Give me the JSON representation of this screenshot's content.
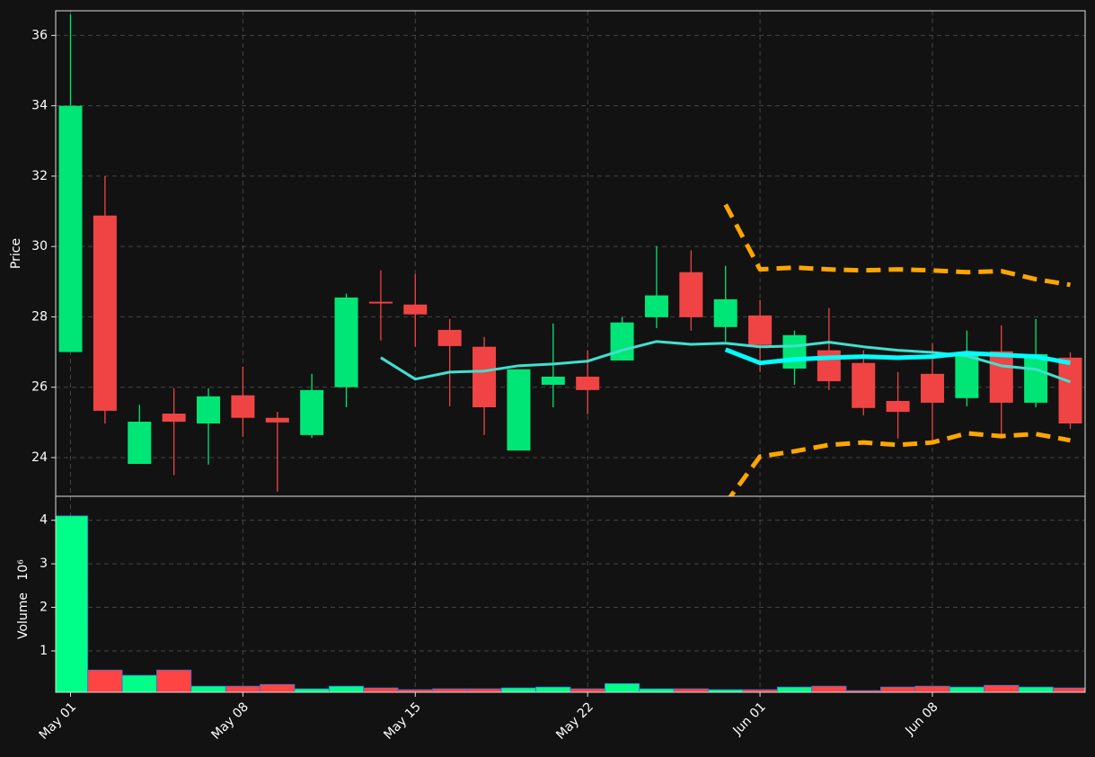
{
  "chart_data": [
    {
      "type": "candlestick",
      "ylabel": "Price",
      "open": [
        27.0,
        30.88,
        23.82,
        25.25,
        24.97,
        25.77,
        25.13,
        24.64,
        26.0,
        28.43,
        28.35,
        27.63,
        27.15,
        24.2,
        26.07,
        26.3,
        26.76,
        27.99,
        29.27,
        27.71,
        28.04,
        26.53,
        27.05,
        26.69,
        25.61,
        26.38,
        25.69,
        27.02,
        25.56,
        26.84
      ],
      "high": [
        36.6,
        32.0,
        25.5,
        25.97,
        25.97,
        26.58,
        25.3,
        26.38,
        28.66,
        29.32,
        29.22,
        27.94,
        27.43,
        26.51,
        27.81,
        27.05,
        27.99,
        30.01,
        29.89,
        29.45,
        28.48,
        27.61,
        28.25,
        27.05,
        26.43,
        27.25,
        27.61,
        27.76,
        27.94,
        26.99
      ],
      "low": [
        27.0,
        24.97,
        23.82,
        23.5,
        23.8,
        24.59,
        23.03,
        24.56,
        25.43,
        27.33,
        27.15,
        25.46,
        24.64,
        24.2,
        25.43,
        25.23,
        26.76,
        27.68,
        27.61,
        27.3,
        26.43,
        26.07,
        25.92,
        25.2,
        24.54,
        24.49,
        25.46,
        24.54,
        25.43,
        24.82
      ],
      "close": [
        34.0,
        25.33,
        25.02,
        25.02,
        25.74,
        25.13,
        25.0,
        25.92,
        28.55,
        28.38,
        28.07,
        27.17,
        25.43,
        26.51,
        26.3,
        25.92,
        27.84,
        28.61,
        27.99,
        28.5,
        27.2,
        27.48,
        26.17,
        25.41,
        25.3,
        25.56,
        26.99,
        25.56,
        26.94,
        24.97
      ],
      "up_color": "#00e676",
      "down_color": "#f04444",
      "overlays": [
        {
          "color": "#40e0d0",
          "width": 3,
          "dashed": false,
          "values": [
            null,
            null,
            null,
            null,
            null,
            null,
            null,
            null,
            null,
            26.84,
            26.23,
            26.43,
            26.46,
            26.61,
            26.66,
            26.74,
            27.05,
            27.3,
            27.22,
            27.25,
            27.15,
            27.17,
            27.28,
            27.15,
            27.05,
            26.99,
            26.89,
            26.61,
            26.51,
            26.15
          ]
        },
        {
          "color": "#00ffff",
          "width": 5,
          "dashed": false,
          "values": [
            null,
            null,
            null,
            null,
            null,
            null,
            null,
            null,
            null,
            null,
            null,
            null,
            null,
            null,
            null,
            null,
            null,
            null,
            null,
            27.07,
            26.69,
            26.79,
            26.84,
            26.87,
            26.84,
            26.87,
            26.97,
            26.92,
            26.87,
            26.69
          ]
        },
        {
          "color": "#ffa500",
          "width": 5,
          "dashed": true,
          "values": [
            null,
            null,
            null,
            null,
            null,
            null,
            null,
            null,
            null,
            null,
            null,
            null,
            null,
            null,
            null,
            null,
            null,
            null,
            null,
            31.19,
            29.35,
            29.4,
            29.35,
            29.32,
            29.35,
            29.32,
            29.27,
            29.3,
            29.07,
            28.91
          ]
        },
        {
          "color": "#ffa500",
          "width": 5,
          "dashed": true,
          "values": [
            null,
            null,
            null,
            null,
            null,
            null,
            null,
            null,
            null,
            null,
            null,
            null,
            null,
            null,
            null,
            null,
            null,
            null,
            null,
            22.7,
            24.03,
            24.18,
            24.36,
            24.43,
            24.36,
            24.43,
            24.69,
            24.61,
            24.67,
            24.49
          ]
        }
      ],
      "ylim": [
        22.9,
        36.7
      ],
      "yticks": [
        24,
        26,
        28,
        30,
        32,
        34,
        36
      ],
      "grid": true
    },
    {
      "type": "bar",
      "ylabel": "Volume",
      "exponent_label": "10⁶",
      "categories": [
        "May 01",
        null,
        null,
        null,
        null,
        "May 08",
        null,
        null,
        null,
        null,
        "May 15",
        null,
        null,
        null,
        null,
        "May 22",
        null,
        null,
        null,
        null,
        "Jun 01",
        null,
        null,
        null,
        null,
        "Jun 08",
        null,
        null,
        null,
        null
      ],
      "values": [
        4.1,
        0.56,
        0.44,
        0.56,
        0.19,
        0.19,
        0.23,
        0.13,
        0.19,
        0.15,
        0.11,
        0.13,
        0.13,
        0.15,
        0.17,
        0.13,
        0.25,
        0.13,
        0.13,
        0.11,
        0.11,
        0.17,
        0.19,
        0.09,
        0.17,
        0.19,
        0.17,
        0.21,
        0.17,
        0.15
      ],
      "up_color": "#00ff88",
      "down_color": "#ff4444",
      "edge_color": "#3a6fd8",
      "ylim": [
        0.05,
        4.55
      ],
      "yticks": [
        1,
        2,
        3,
        4
      ],
      "grid": true
    }
  ]
}
